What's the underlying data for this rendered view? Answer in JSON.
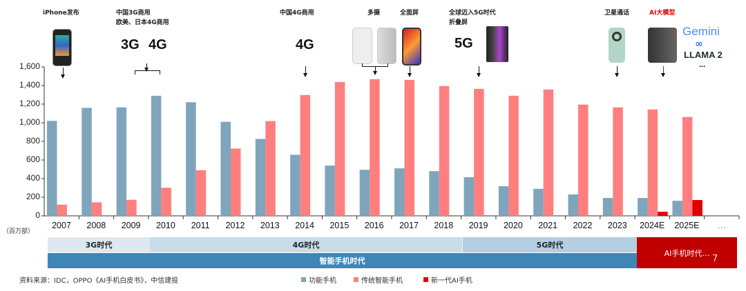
{
  "chart_data": {
    "type": "bar",
    "unit_label": "（百万部）",
    "categories": [
      "2007",
      "2008",
      "2009",
      "2010",
      "2011",
      "2012",
      "2013",
      "2014",
      "2015",
      "2016",
      "2017",
      "2018",
      "2019",
      "2020",
      "2021",
      "2022",
      "2023",
      "2024E",
      "2025E",
      "…"
    ],
    "ylim": [
      0,
      1600
    ],
    "yticks": [
      "0",
      "200",
      "400",
      "600",
      "800",
      "1,000",
      "1,200",
      "1,400",
      "1,600"
    ],
    "grid": false,
    "legend_position": "bottom",
    "series": [
      {
        "name": "功能手机",
        "color": "#7fa5bd",
        "values": [
          1020,
          1160,
          1165,
          1290,
          1220,
          1010,
          826,
          656,
          540,
          495,
          510,
          480,
          415,
          318,
          290,
          230,
          192,
          192,
          162,
          null
        ]
      },
      {
        "name": "传统智能手机",
        "color": "#ff7f7f",
        "values": [
          120,
          145,
          172,
          302,
          490,
          723,
          1018,
          1298,
          1438,
          1468,
          1460,
          1394,
          1364,
          1290,
          1357,
          1195,
          1165,
          1143,
          1062,
          null
        ]
      },
      {
        "name": "新一代AI手机",
        "color": "#e00000",
        "values": [
          null,
          null,
          null,
          null,
          null,
          null,
          null,
          null,
          null,
          null,
          null,
          null,
          null,
          null,
          null,
          null,
          null,
          44,
          170,
          null
        ]
      }
    ]
  },
  "annotations": {
    "iphone": "iPhone发布",
    "china3g_line1": "中国3G商用",
    "china3g_line2": "欧美、日本4G商用",
    "china4g": "中国4G商用",
    "multicam": "多摄",
    "fullscreen": "全面屏",
    "global5g_line1": "全球迈入5G时代",
    "global5g_line2": "折叠屏",
    "satellite": "卫星通话",
    "ai_model": "AI大模型",
    "g3": "3G",
    "g4": "4G",
    "g5": "5G",
    "gemini": "Gemini",
    "llama": "LLAMA 2",
    "ellipsis": "..."
  },
  "eras": {
    "e3g": "3G时代",
    "e4g": "4G时代",
    "e5g": "5G时代",
    "smart": "智能手机时代",
    "ai": "AI手机时代…",
    "page_number": "7"
  },
  "source": "资料来源：IDC，OPPO《AI手机白皮书》，中信建投",
  "colors": {
    "feature": "#7fa5bd",
    "smart": "#ff7f7f",
    "ai": "#e00000",
    "era_light": "#dde8f0",
    "era_mid": "#c4dae9",
    "era_5g": "#b4cfe3",
    "smart_band": "#3f86b8",
    "ai_band": "#c00000"
  }
}
